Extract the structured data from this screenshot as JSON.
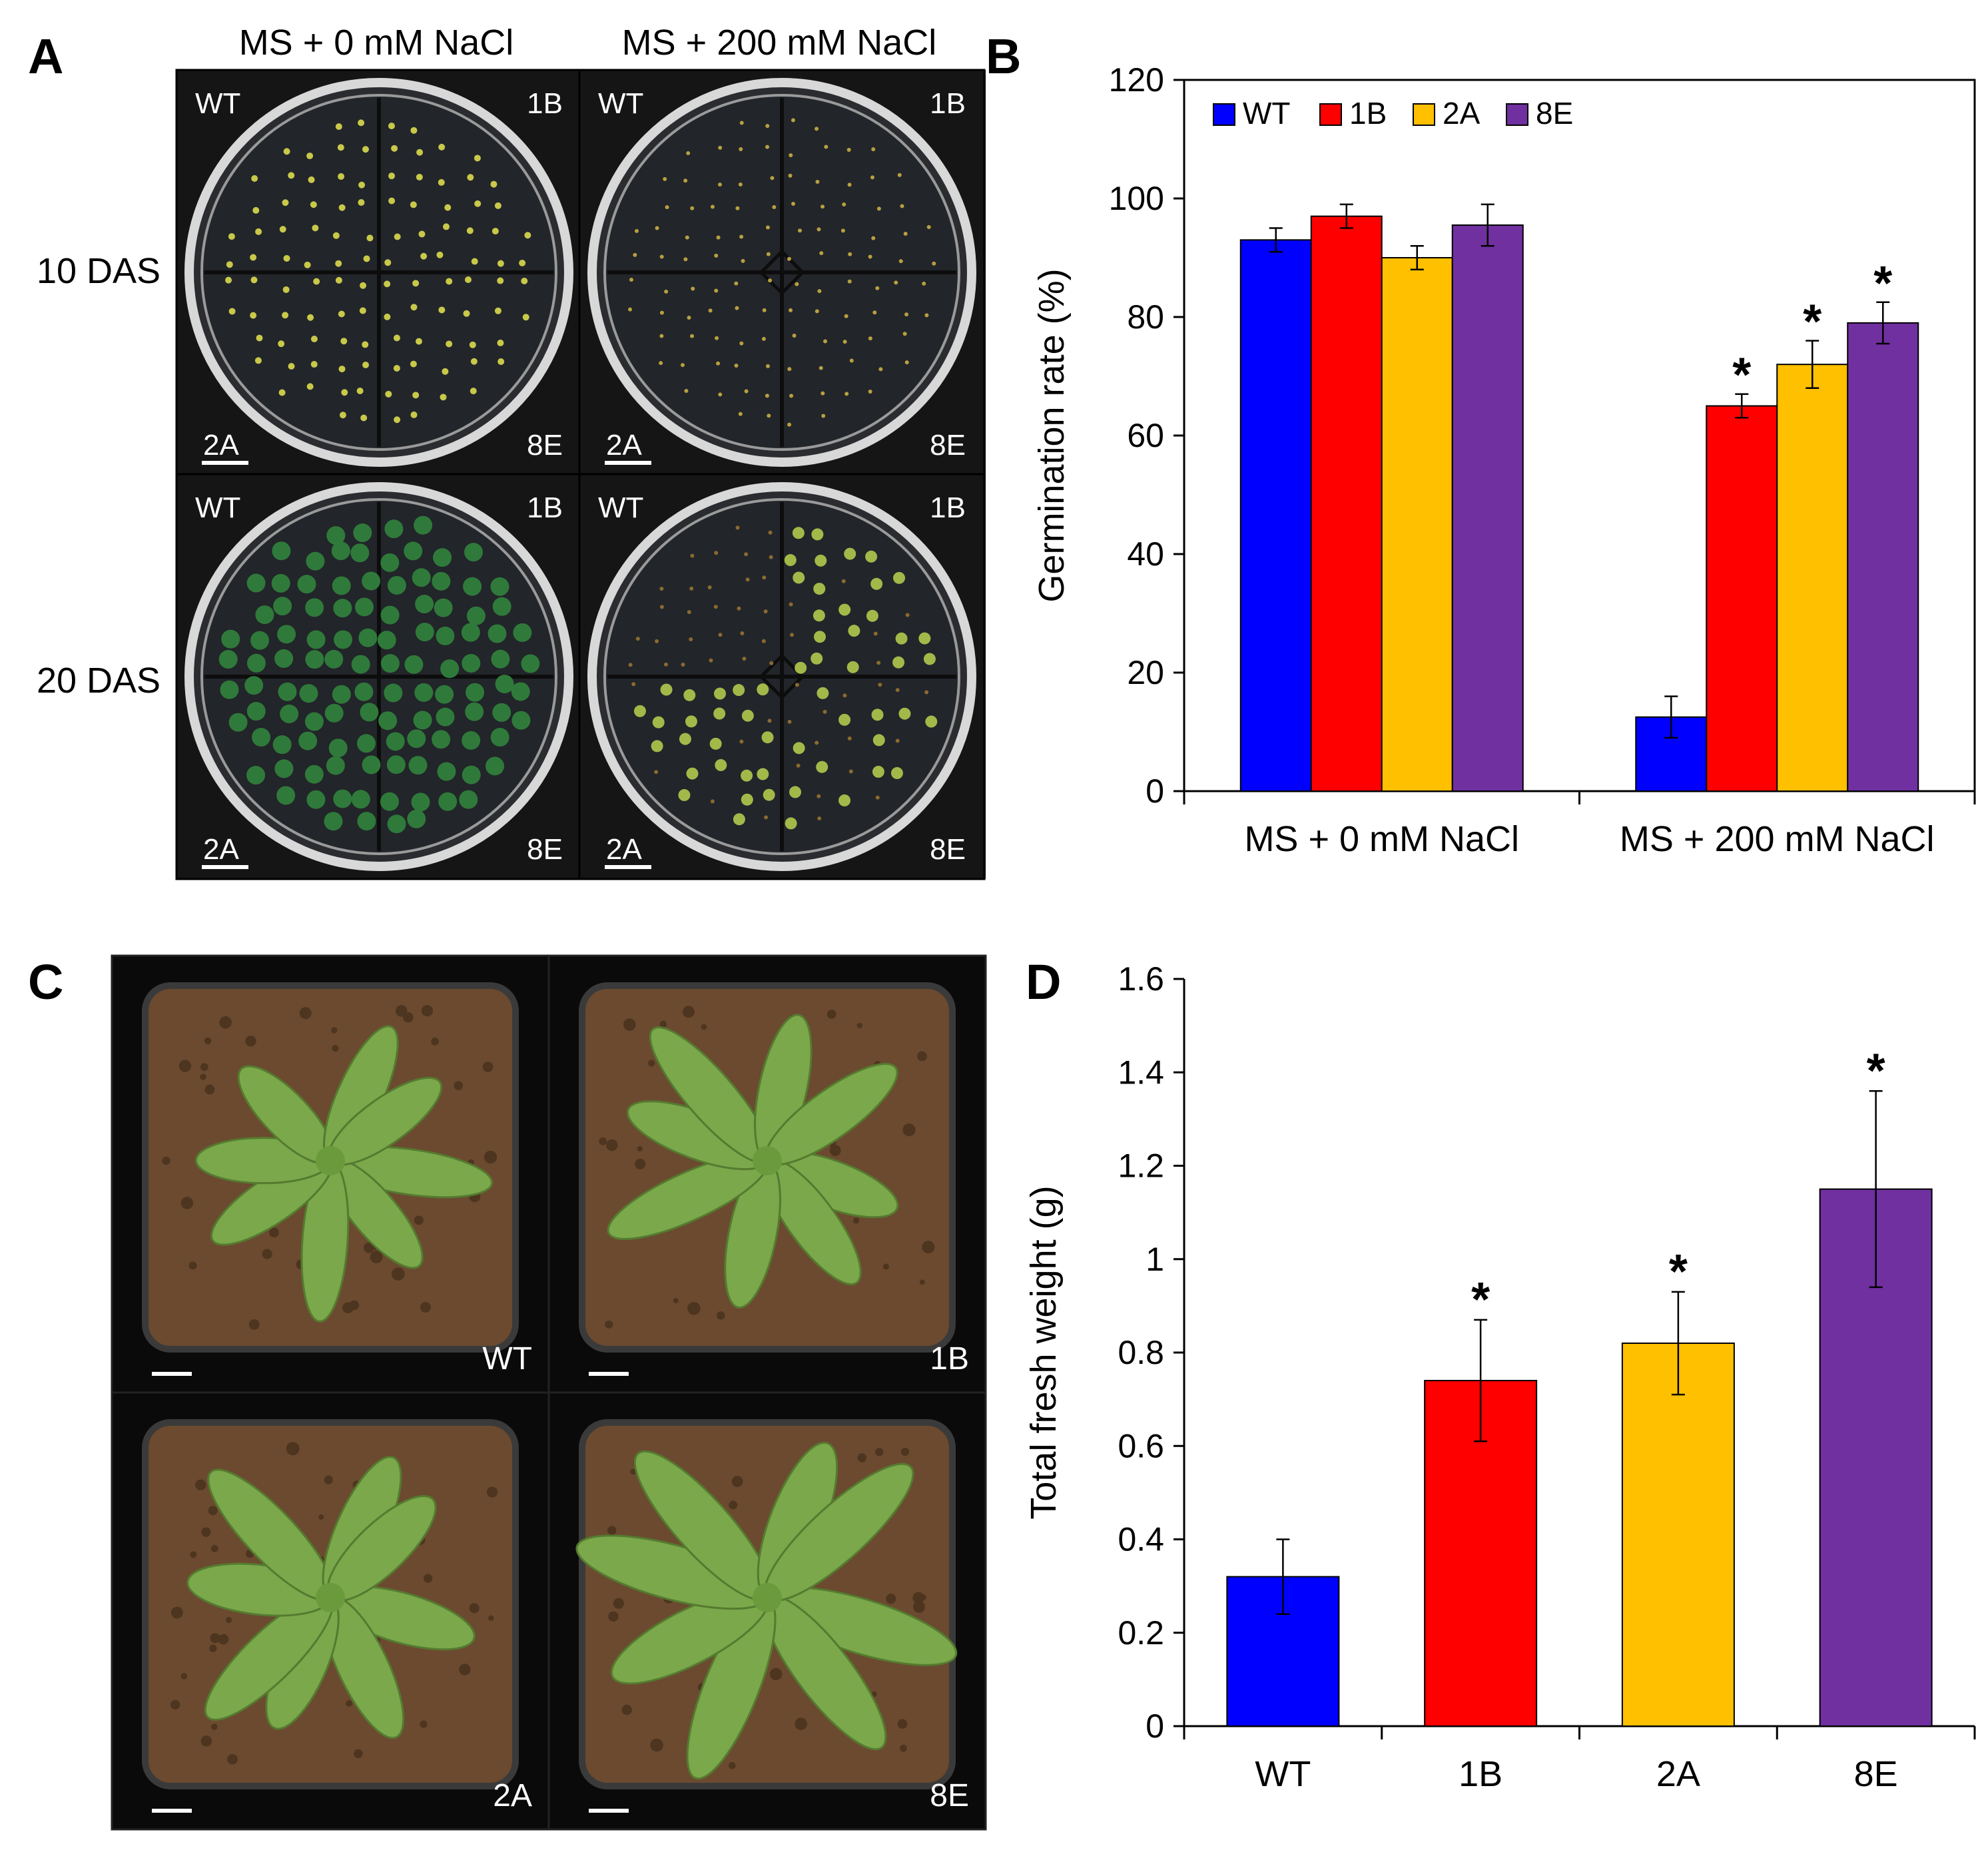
{
  "panels": {
    "A": {
      "letter": "A",
      "col_headers": [
        "MS + 0 mM NaCl",
        "MS + 200 mM NaCl"
      ],
      "row_labels": [
        "10 DAS",
        "20 DAS"
      ],
      "plate_labels": [
        "WT",
        "1B",
        "2A",
        "8E"
      ]
    },
    "B": {
      "letter": "B"
    },
    "C": {
      "letter": "C",
      "pot_labels": [
        "WT",
        "1B",
        "2A",
        "8E"
      ]
    },
    "D": {
      "letter": "D"
    }
  },
  "colors": {
    "WT": "#0000FF",
    "1B": "#FF0000",
    "2A": "#FFC000",
    "8E": "#7030A0",
    "plate_bg": "#1a1a1a",
    "soil": "#6b4a2f",
    "leaf": "#7aa84a"
  },
  "chart_data": [
    {
      "panel": "B",
      "type": "bar",
      "ylabel": "Germination rate (%)",
      "xlabel": "",
      "ylim": [
        0,
        120
      ],
      "yticks": [
        0,
        20,
        40,
        60,
        80,
        100,
        120
      ],
      "categories": [
        "MS + 0 mM NaCl",
        "MS + 200 mM NaCl"
      ],
      "legend_position": "top-left",
      "series": [
        {
          "name": "WT",
          "values": [
            93,
            12.5
          ],
          "errors": [
            2,
            3.5
          ],
          "significant": [
            false,
            false
          ]
        },
        {
          "name": "1B",
          "values": [
            97,
            65
          ],
          "errors": [
            2,
            2
          ],
          "significant": [
            false,
            true
          ]
        },
        {
          "name": "2A",
          "values": [
            90,
            72
          ],
          "errors": [
            2,
            4
          ],
          "significant": [
            false,
            true
          ]
        },
        {
          "name": "8E",
          "values": [
            95.5,
            79
          ],
          "errors": [
            3.5,
            3.5
          ],
          "significant": [
            false,
            true
          ]
        }
      ],
      "significance_mark": "*"
    },
    {
      "panel": "D",
      "type": "bar",
      "ylabel": "Total fresh weight (g)",
      "xlabel": "",
      "ylim": [
        0,
        1.6
      ],
      "yticks": [
        0,
        0.2,
        0.4,
        0.6,
        0.8,
        1,
        1.2,
        1.4,
        1.6
      ],
      "ytick_labels": [
        "0",
        "0.2",
        "0.4",
        "0.6",
        "0.8",
        "1",
        "1.2",
        "1.4",
        "1.6"
      ],
      "categories": [
        "WT",
        "1B",
        "2A",
        "8E"
      ],
      "values": [
        0.32,
        0.74,
        0.82,
        1.15
      ],
      "errors": [
        0.08,
        0.13,
        0.11,
        0.21
      ],
      "significant": [
        false,
        true,
        true,
        true
      ],
      "significance_mark": "*"
    }
  ]
}
